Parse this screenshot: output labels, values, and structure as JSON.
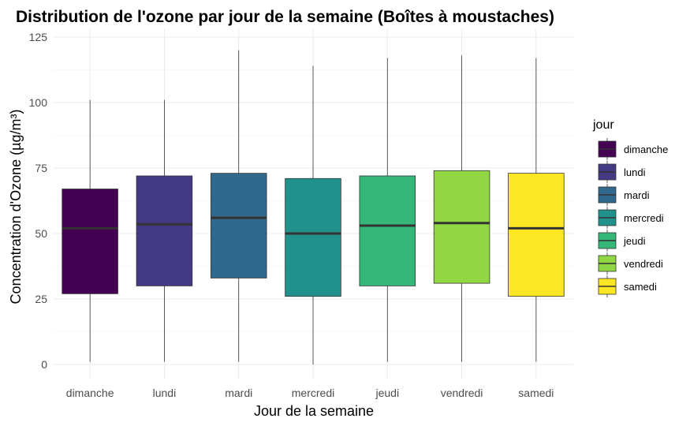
{
  "chart_data": {
    "type": "boxplot",
    "title": "Distribution de l'ozone par jour de la semaine (Boîtes à moustaches)",
    "xlabel": "Jour de la semaine",
    "ylabel": "Concentration d'Ozone (µg/m³)",
    "ylim": [
      -5,
      125
    ],
    "yticks": [
      0,
      25,
      50,
      75,
      100,
      125
    ],
    "grid": true,
    "legend": {
      "title": "jour",
      "position": "right"
    },
    "categories": [
      "dimanche",
      "lundi",
      "mardi",
      "mercredi",
      "jeudi",
      "vendredi",
      "samedi"
    ],
    "colors": [
      "#440154",
      "#443983",
      "#31688e",
      "#21918c",
      "#35b779",
      "#90d743",
      "#fde725"
    ],
    "series": [
      {
        "category": "dimanche",
        "min": 1,
        "q1": 27,
        "median": 52,
        "q3": 67,
        "max": 101
      },
      {
        "category": "lundi",
        "min": 1,
        "q1": 30,
        "median": 53.5,
        "q3": 72,
        "max": 101
      },
      {
        "category": "mardi",
        "min": 1,
        "q1": 33,
        "median": 56,
        "q3": 73,
        "max": 120
      },
      {
        "category": "mercredi",
        "min": 0,
        "q1": 26,
        "median": 50,
        "q3": 71,
        "max": 114
      },
      {
        "category": "jeudi",
        "min": 1,
        "q1": 30,
        "median": 53,
        "q3": 72,
        "max": 117
      },
      {
        "category": "vendredi",
        "min": 1,
        "q1": 31,
        "median": 54,
        "q3": 74,
        "max": 118
      },
      {
        "category": "samedi",
        "min": 1,
        "q1": 26,
        "median": 52,
        "q3": 73,
        "max": 117
      }
    ]
  }
}
